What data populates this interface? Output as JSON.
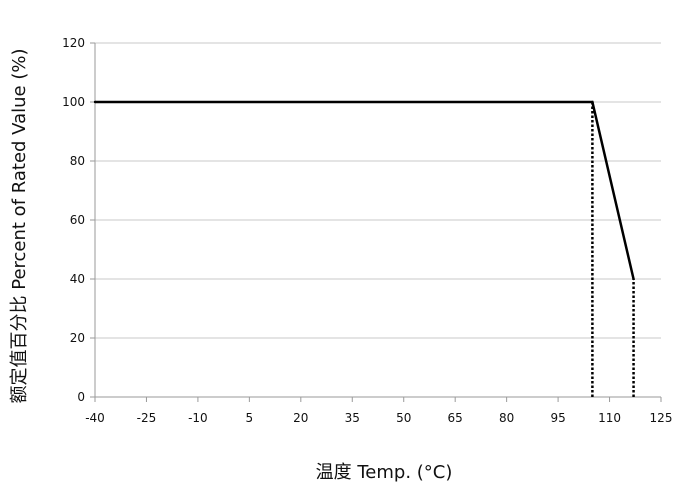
{
  "chart_data": {
    "type": "line",
    "title": "",
    "xlabel": "温度 Temp. (°C)",
    "ylabel": "额定值百分比 Percent of Rated Value (%)",
    "xlim": [
      -40,
      125
    ],
    "ylim": [
      0,
      120
    ],
    "x_ticks": [
      -40,
      -25,
      -10,
      5,
      20,
      35,
      50,
      65,
      80,
      95,
      110,
      125
    ],
    "y_ticks": [
      0,
      20,
      40,
      60,
      80,
      100,
      120
    ],
    "grid": {
      "horizontal": true,
      "vertical": false
    },
    "series": [
      {
        "style": "solid",
        "color": "#000000",
        "points": [
          {
            "x": -40,
            "y": 100
          },
          {
            "x": 105,
            "y": 100
          },
          {
            "x": 117,
            "y": 40
          }
        ]
      }
    ],
    "reference_lines": [
      {
        "style": "dotted",
        "color": "#000000",
        "x": 105,
        "y_from": 0,
        "y_to": 100
      },
      {
        "style": "dotted",
        "color": "#000000",
        "x": 117,
        "y_from": 0,
        "y_to": 40
      }
    ]
  }
}
